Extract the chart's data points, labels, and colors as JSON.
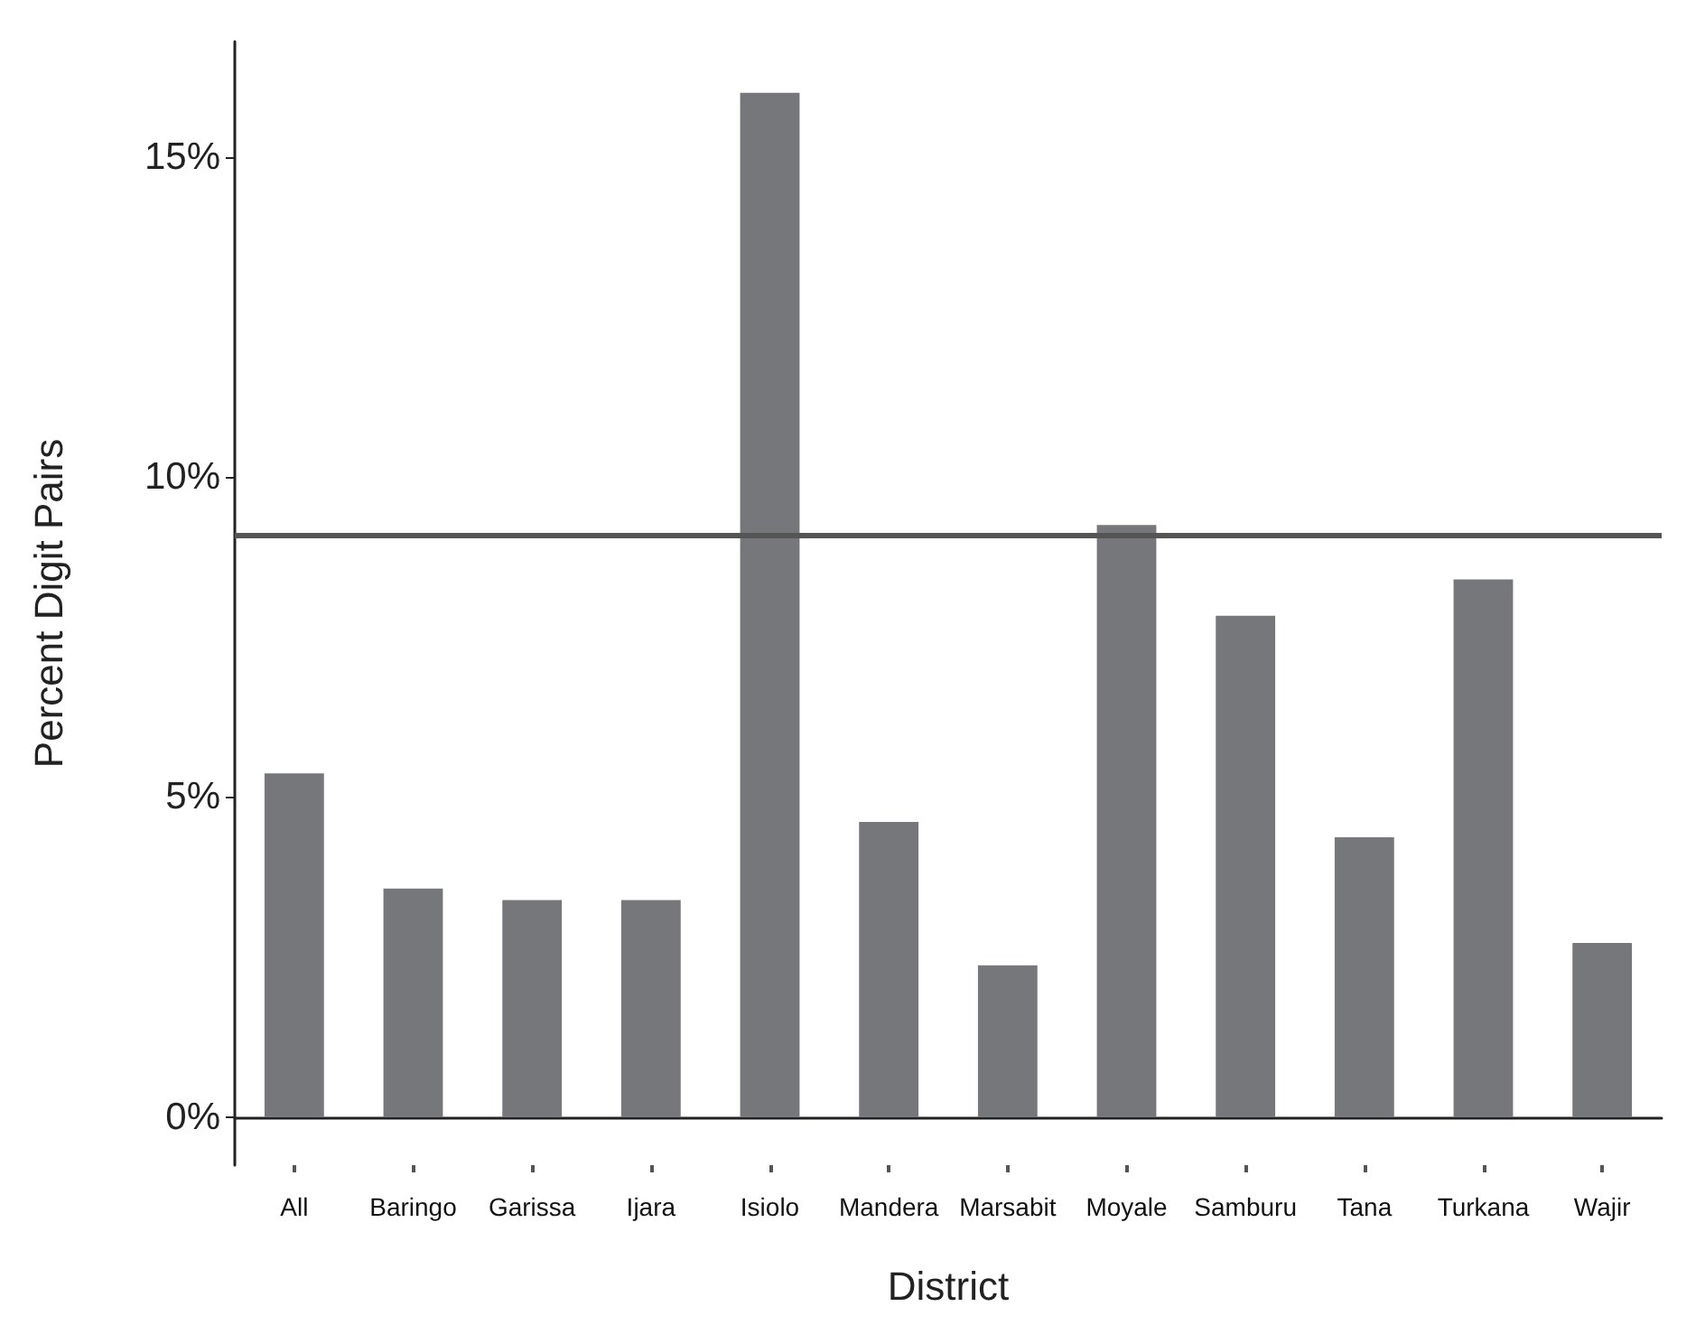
{
  "chart_data": {
    "type": "bar",
    "xlabel": "District",
    "ylabel": "Percent Digit Pairs",
    "categories": [
      "All",
      "Baringo",
      "Garissa",
      "Ijara",
      "Isiolo",
      "Mandera",
      "Marsabit",
      "Moyale",
      "Samburu",
      "Tana",
      "Turkana",
      "Wajir"
    ],
    "values": [
      5.37,
      3.57,
      3.39,
      3.39,
      16.0,
      4.61,
      2.37,
      9.25,
      7.83,
      4.37,
      8.4,
      2.72
    ],
    "color": "#76777b",
    "ylim": [
      -0.75,
      16.8
    ],
    "yticks": [
      {
        "value": 0,
        "label": "0%"
      },
      {
        "value": 5,
        "label": "5%"
      },
      {
        "value": 10,
        "label": "10%"
      },
      {
        "value": 15,
        "label": "15%"
      }
    ],
    "ref_lines": [
      {
        "axis": "y",
        "value": 9.1,
        "color": "#555555"
      }
    ]
  }
}
